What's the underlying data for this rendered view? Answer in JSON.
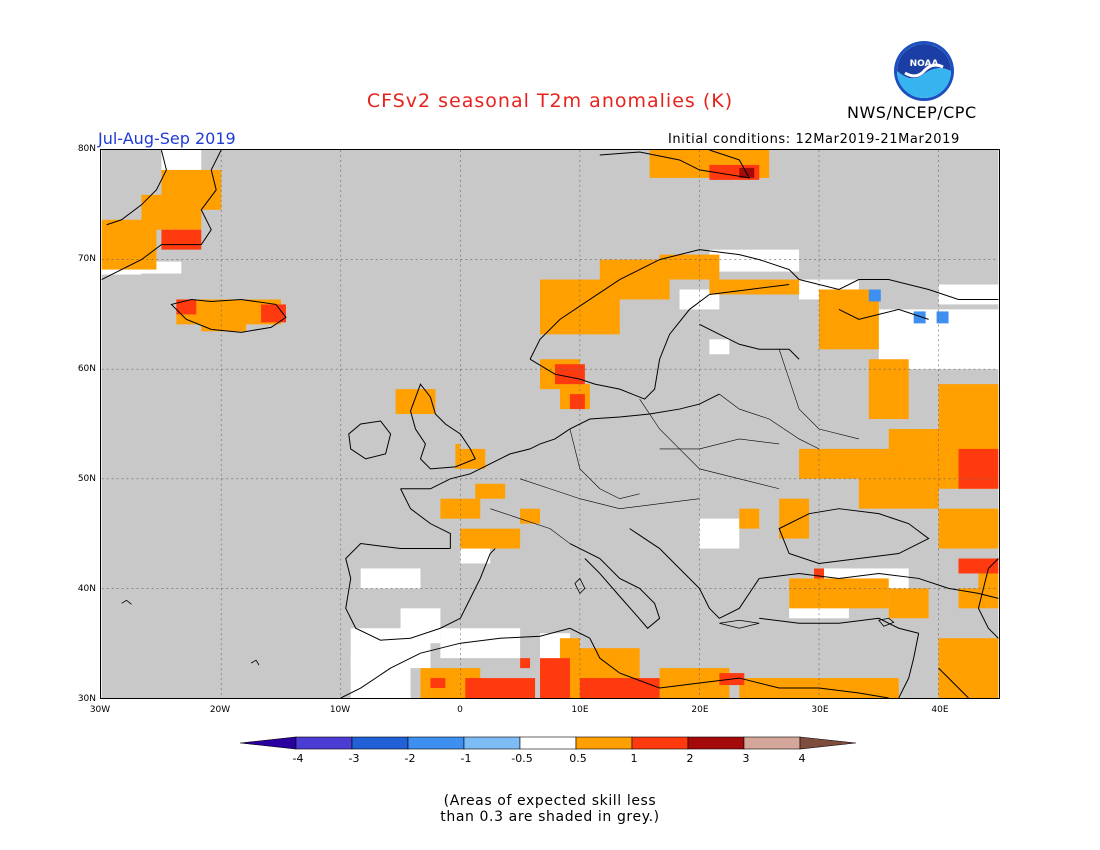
{
  "header": {
    "title": "CFSv2 seasonal T2m anomalies (K)",
    "agency": "NWS/NCEP/CPC",
    "logo_text": "NOAA",
    "period": "Jul-Aug-Sep 2019",
    "initial_conditions": "Initial conditions: 12Mar2019-21Mar2019"
  },
  "map": {
    "projection": "lat-lon",
    "lon_range": [
      -30,
      45
    ],
    "lat_range": [
      30,
      80
    ],
    "background_color": "#c8c8c8",
    "lat_labels": [
      "80N",
      "70N",
      "60N",
      "50N",
      "40N",
      "30N"
    ],
    "lon_labels": [
      "30W",
      "20W",
      "10W",
      "0",
      "10E",
      "20E",
      "30E",
      "40E"
    ],
    "gridlines": "dotted"
  },
  "legend": {
    "colors": [
      "#2a00a0",
      "#4b3dd4",
      "#2160d6",
      "#3d8ff0",
      "#7dbcf5",
      "#ffffff",
      "#ff9f00",
      "#ff3a0f",
      "#a50a0a",
      "#d5a79b",
      "#7f4d3e"
    ],
    "labels": [
      "-4",
      "-3",
      "-2",
      "-1",
      "-0.5",
      "0.5",
      "1",
      "2",
      "3",
      "4"
    ]
  },
  "note": {
    "line1": "(Areas of expected skill less",
    "line2": "than 0.3 are shaded in grey.)"
  }
}
